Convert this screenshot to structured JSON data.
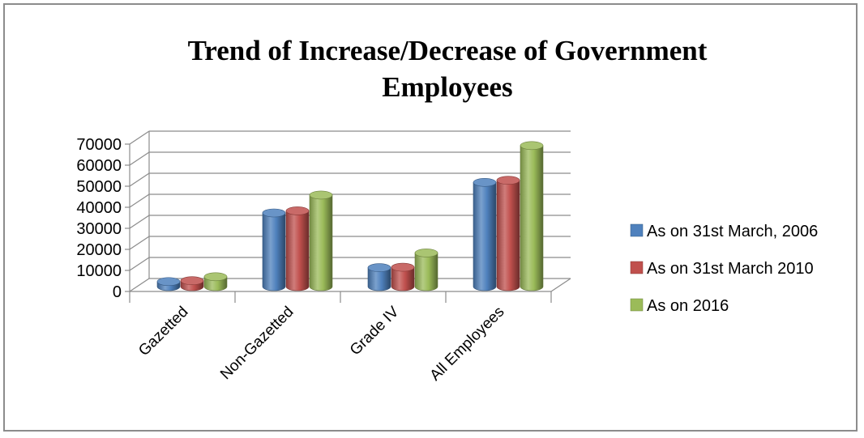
{
  "chart_data": {
    "type": "bar",
    "title_lines": [
      "Trend of Increase/Decrease of Government",
      "Employees"
    ],
    "xlabel": "",
    "ylabel": "",
    "categories": [
      "Gazetted",
      "Non-Gazetted",
      "Grade IV",
      "All Employees"
    ],
    "series": [
      {
        "name": "As on 31st March, 2006",
        "color": "#4f81bd",
        "values": [
          2400,
          35000,
          9000,
          49500
        ]
      },
      {
        "name": "As on 31st March 2010",
        "color": "#c0504d",
        "values": [
          2800,
          36000,
          9200,
          50500
        ]
      },
      {
        "name": "As on 2016",
        "color": "#9bbb59",
        "values": [
          4700,
          43500,
          16000,
          67000
        ]
      }
    ],
    "ylim": [
      0,
      70000
    ],
    "yticks": [
      "70000",
      "60000",
      "50000",
      "40000",
      "30000",
      "20000",
      "10000",
      "0"
    ],
    "grid": true,
    "legend_position": "right",
    "style": "3d-cylinder"
  }
}
